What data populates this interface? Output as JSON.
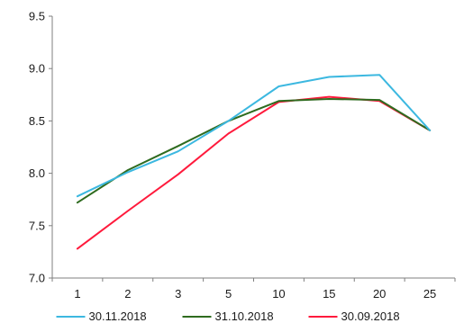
{
  "chart_data": {
    "type": "line",
    "title": "",
    "xlabel": "",
    "ylabel": "",
    "categories": [
      "1",
      "2",
      "3",
      "5",
      "10",
      "15",
      "20",
      "25"
    ],
    "ylim": [
      7.0,
      9.5
    ],
    "yticks": [
      "7.0",
      "7.5",
      "8.0",
      "8.5",
      "9.0",
      "9.5"
    ],
    "grid": false,
    "legend_position": "bottom",
    "series": [
      {
        "name": "30.11.2018",
        "color": "#3cb8e0",
        "values": [
          7.78,
          8.01,
          8.21,
          8.5,
          8.83,
          8.92,
          8.94,
          8.41
        ]
      },
      {
        "name": "31.10.2018",
        "color": "#2e6b1f",
        "values": [
          7.72,
          8.03,
          8.26,
          8.5,
          8.69,
          8.71,
          8.7,
          8.41
        ]
      },
      {
        "name": "30.09.2018",
        "color": "#ff1a3c",
        "values": [
          7.28,
          7.64,
          7.99,
          8.38,
          8.68,
          8.73,
          8.69,
          8.41
        ]
      }
    ]
  }
}
